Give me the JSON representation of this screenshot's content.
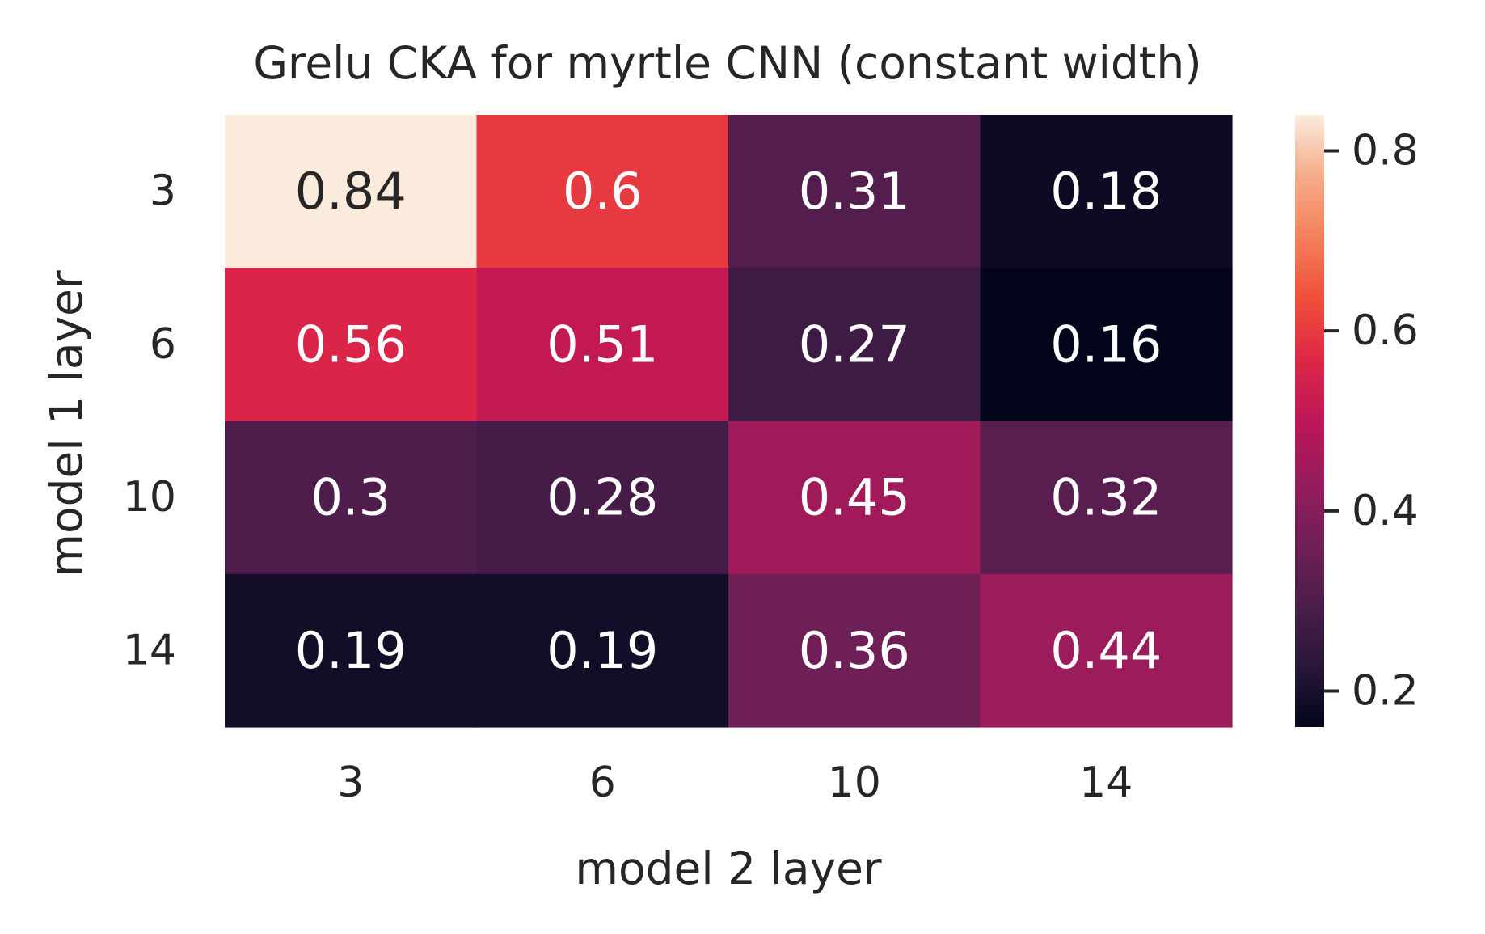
{
  "chart_data": {
    "type": "heatmap",
    "title": "Grelu CKA for myrtle CNN (constant width)",
    "xlabel": "model 2 layer",
    "ylabel": "model 1 layer",
    "x_categories": [
      "3",
      "6",
      "10",
      "14"
    ],
    "y_categories": [
      "3",
      "6",
      "10",
      "14"
    ],
    "values": [
      [
        0.84,
        0.6,
        0.31,
        0.18
      ],
      [
        0.56,
        0.51,
        0.27,
        0.16
      ],
      [
        0.3,
        0.28,
        0.45,
        0.32
      ],
      [
        0.19,
        0.19,
        0.36,
        0.44
      ]
    ],
    "cell_labels": [
      [
        "0.84",
        "0.6",
        "0.31",
        "0.18"
      ],
      [
        "0.56",
        "0.51",
        "0.27",
        "0.16"
      ],
      [
        "0.3",
        "0.28",
        "0.45",
        "0.32"
      ],
      [
        "0.19",
        "0.19",
        "0.36",
        "0.44"
      ]
    ],
    "colorbar": {
      "colormap": "rocket",
      "range": [
        0.16,
        0.84
      ],
      "ticks": [
        0.2,
        0.4,
        0.6,
        0.8
      ],
      "tick_labels": [
        "0.2",
        "0.4",
        "0.6",
        "0.8"
      ]
    },
    "grid": false,
    "legend": "colorbar-right"
  }
}
